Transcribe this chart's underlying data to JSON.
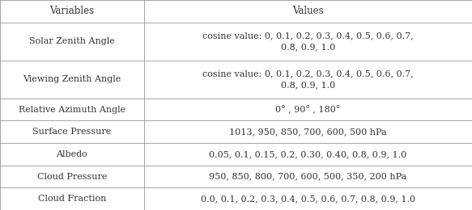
{
  "headers": [
    "Variables",
    "Values"
  ],
  "rows": [
    [
      "Solar Zenith Angle",
      "cosine value: 0, 0.1, 0.2, 0.3, 0.4, 0.5, 0.6, 0.7,\n0.8, 0.9, 1.0"
    ],
    [
      "Viewing Zenith Angle",
      "cosine value: 0, 0.1, 0.2, 0.3, 0.4, 0.5, 0.6, 0.7,\n0.8, 0.9, 1.0"
    ],
    [
      "Relative Azimuth Angle",
      "0° , 90° , 180°"
    ],
    [
      "Surface Pressure",
      "1013, 950, 850, 700, 600, 500 hPa"
    ],
    [
      "Albedo",
      "0.05, 0.1, 0.15, 0.2, 0.30, 0.40, 0.8, 0.9, 1.0"
    ],
    [
      "Cloud Pressure",
      "950, 850, 800, 700, 600, 500, 350, 200 hPa"
    ],
    [
      "Cloud Fraction",
      "0.0, 0.1, 0.2, 0.3, 0.4, 0.5, 0.6, 0.7, 0.8, 0.9, 1.0"
    ]
  ],
  "col_split": 0.305,
  "background_color": "#ffffff",
  "border_color": "#999999",
  "text_color": "#333333",
  "font_size": 8.0,
  "header_font_size": 8.5,
  "row_heights_raw": [
    1.0,
    1.7,
    1.7,
    1.0,
    1.0,
    1.0,
    1.0,
    1.0
  ],
  "lw": 0.6
}
